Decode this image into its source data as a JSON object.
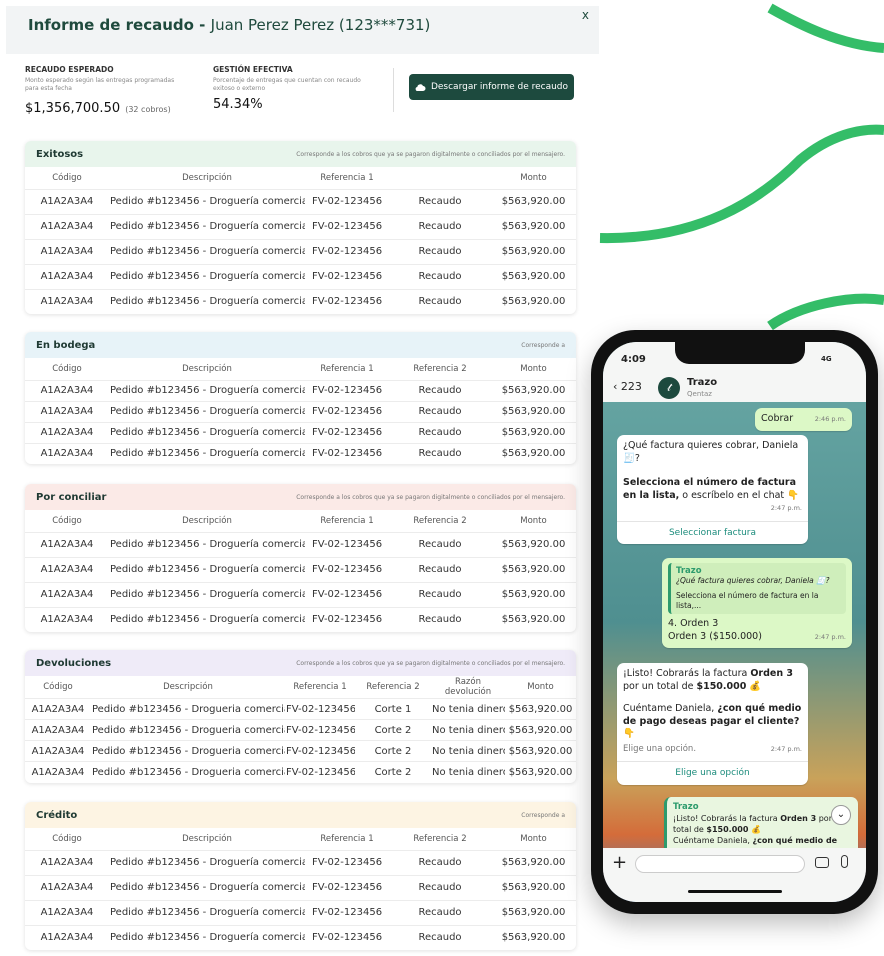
{
  "header": {
    "title": "Informe de recaudo -",
    "client": "Juan Perez Perez (123***731)",
    "close": "x"
  },
  "summary": {
    "expected": {
      "label": "RECAUDO ESPERADO",
      "description": "Monto esperado según las entregas programadas para esta fecha",
      "amount": "$1,356,700.50",
      "count": "(32 cobros)"
    },
    "effective": {
      "label": "GESTIÓN EFECTIVA",
      "description": "Porcentaje de entregas que cuentan con recaudo exitoso o externo",
      "value": "54.34%"
    },
    "download_button": "Descargar informe de recaudo"
  },
  "sections": [
    {
      "title": "Exitosos",
      "note": "Corresponde a los cobros que ya se pagaron digitalmente o conciliados por el mensajero.",
      "columns": [
        "Código",
        "Descripción",
        "Referencia 1",
        null,
        "Monto"
      ],
      "rows": [
        [
          "A1A2A3A4",
          "Pedido #b123456 - Droguería comercia...",
          "FV-02-123456",
          "Recaudo",
          "$563,920.00"
        ],
        [
          "A1A2A3A4",
          "Pedido #b123456 - Droguería comercia...",
          "FV-02-123456",
          "Recaudo",
          "$563,920.00"
        ],
        [
          "A1A2A3A4",
          "Pedido #b123456 - Droguería comercia...",
          "FV-02-123456",
          "Recaudo",
          "$563,920.00"
        ],
        [
          "A1A2A3A4",
          "Pedido #b123456 - Droguería comercia...",
          "FV-02-123456",
          "Recaudo",
          "$563,920.00"
        ],
        [
          "A1A2A3A4",
          "Pedido #b123456 - Droguería comercia...",
          "FV-02-123456",
          "Recaudo",
          "$563,920.00"
        ]
      ]
    },
    {
      "title": "En bodega",
      "note": "Corresponde a",
      "columns": [
        "Código",
        "Descripción",
        "Referencia 1",
        "Referencia 2",
        "Monto"
      ],
      "rows": [
        [
          "A1A2A3A4",
          "Pedido #b123456 - Droguería comercia...",
          "FV-02-123456",
          "Recaudo",
          "$563,920.00"
        ],
        [
          "A1A2A3A4",
          "Pedido #b123456 - Droguería comercia...",
          "FV-02-123456",
          "Recaudo",
          "$563,920.00"
        ],
        [
          "A1A2A3A4",
          "Pedido #b123456 - Droguería comercia...",
          "FV-02-123456",
          "Recaudo",
          "$563,920.00"
        ],
        [
          "A1A2A3A4",
          "Pedido #b123456 - Droguería comercia...",
          "FV-02-123456",
          "Recaudo",
          "$563,920.00"
        ]
      ]
    },
    {
      "title": "Por conciliar",
      "note": "Corresponde a los cobros que ya se pagaron digitalmente o conciliados por el mensajero.",
      "columns": [
        "Código",
        "Descripción",
        "Referencia 1",
        "Referencia 2",
        "Monto"
      ],
      "rows": [
        [
          "A1A2A3A4",
          "Pedido #b123456 - Droguería comercia...",
          "FV-02-123456",
          "Recaudo",
          "$563,920.00"
        ],
        [
          "A1A2A3A4",
          "Pedido #b123456 - Droguería comercia...",
          "FV-02-123456",
          "Recaudo",
          "$563,920.00"
        ],
        [
          "A1A2A3A4",
          "Pedido #b123456 - Droguería comercia...",
          "FV-02-123456",
          "Recaudo",
          "$563,920.00"
        ],
        [
          "A1A2A3A4",
          "Pedido #b123456 - Droguería comercia...",
          "FV-02-123456",
          "Recaudo",
          "$563,920.00"
        ]
      ]
    },
    {
      "title": "Devoluciones",
      "note": "Corresponde a los cobros que ya se pagaron digitalmente o conciliados por el mensajero.",
      "columns": [
        "Código",
        "Descripción",
        "Referencia 1",
        "Referencia 2",
        "Razón devolución",
        "Monto"
      ],
      "rows": [
        [
          "A1A2A3A4",
          "Pedido #b123456 - Drogueria comercia...",
          "FV-02-123456",
          "Corte 1",
          "No tenia dinero",
          "$563,920.00"
        ],
        [
          "A1A2A3A4",
          "Pedido #b123456 - Drogueria comercia...",
          "FV-02-123456",
          "Corte 2",
          "No tenia dinero",
          "$563,920.00"
        ],
        [
          "A1A2A3A4",
          "Pedido #b123456 - Drogueria comercia...",
          "FV-02-123456",
          "Corte 2",
          "No tenia dinero",
          "$563,920.00"
        ],
        [
          "A1A2A3A4",
          "Pedido #b123456 - Drogueria comercia...",
          "FV-02-123456",
          "Corte 2",
          "No tenia dinero",
          "$563,920.00"
        ]
      ]
    },
    {
      "title": "Crédito",
      "note": "Corresponde a",
      "columns": [
        "Código",
        "Descripción",
        "Referencia 1",
        "Referencia 2",
        "Monto"
      ],
      "rows": [
        [
          "A1A2A3A4",
          "Pedido #b123456 - Droguería comercia...",
          "FV-02-123456",
          "Recaudo",
          "$563,920.00"
        ],
        [
          "A1A2A3A4",
          "Pedido #b123456 - Droguería comercia...",
          "FV-02-123456",
          "Recaudo",
          "$563,920.00"
        ],
        [
          "A1A2A3A4",
          "Pedido #b123456 - Droguería comercia...",
          "FV-02-123456",
          "Recaudo",
          "$563,920.00"
        ],
        [
          "A1A2A3A4",
          "Pedido #b123456 - Droguería comercia...",
          "FV-02-123456",
          "Recaudo",
          "$563,920.00"
        ]
      ]
    }
  ],
  "phone": {
    "status_time": "4:09",
    "network": "4G",
    "back_count": "223",
    "contact": {
      "name": "Trazo",
      "subtitle": "Qentaz"
    },
    "msg_cobrar": {
      "text": "Cobrar",
      "time": "2:46 p.m."
    },
    "msg_question": {
      "line1": "¿Qué factura quieres cobrar, Daniela 🧾?",
      "bold": "Selecciona el número de factura en la lista,",
      "rest": " o escríbelo en el chat 👇",
      "time": "2:47 p.m.",
      "button": "Seleccionar factura"
    },
    "msg_reply": {
      "quote_name": "Trazo",
      "quote_line1": "¿Qué factura quieres cobrar, Daniela 🧾?",
      "quote_line2": "Selecciona el número de factura en la lista,...",
      "line1": "4. Orden 3",
      "line2": "Orden 3 ($150.000)",
      "time": "2:47 p.m."
    },
    "msg_done": {
      "t1": "¡Listo! Cobrarás la factura ",
      "b1": "Orden 3",
      "t2": " por un total de ",
      "b2": "$150.000",
      "t3": " 💰",
      "t4": "Cuéntame Daniela, ",
      "b3": "¿con qué medio de pago deseas pagar el cliente?",
      "t5": " 👇",
      "hint": "Elige una opción.",
      "time": "2:47 p.m.",
      "button": "Elige una opción"
    },
    "msg_preview": {
      "name": "Trazo",
      "t1": "¡Listo! Cobrarás la factura ",
      "b1": "Orden 3",
      "t2": " por un total de ",
      "b2": "$150.000",
      "t3": " 💰",
      "t4": "Cuéntame Daniela, ",
      "b3": "¿con qué medio de pag..."
    }
  }
}
